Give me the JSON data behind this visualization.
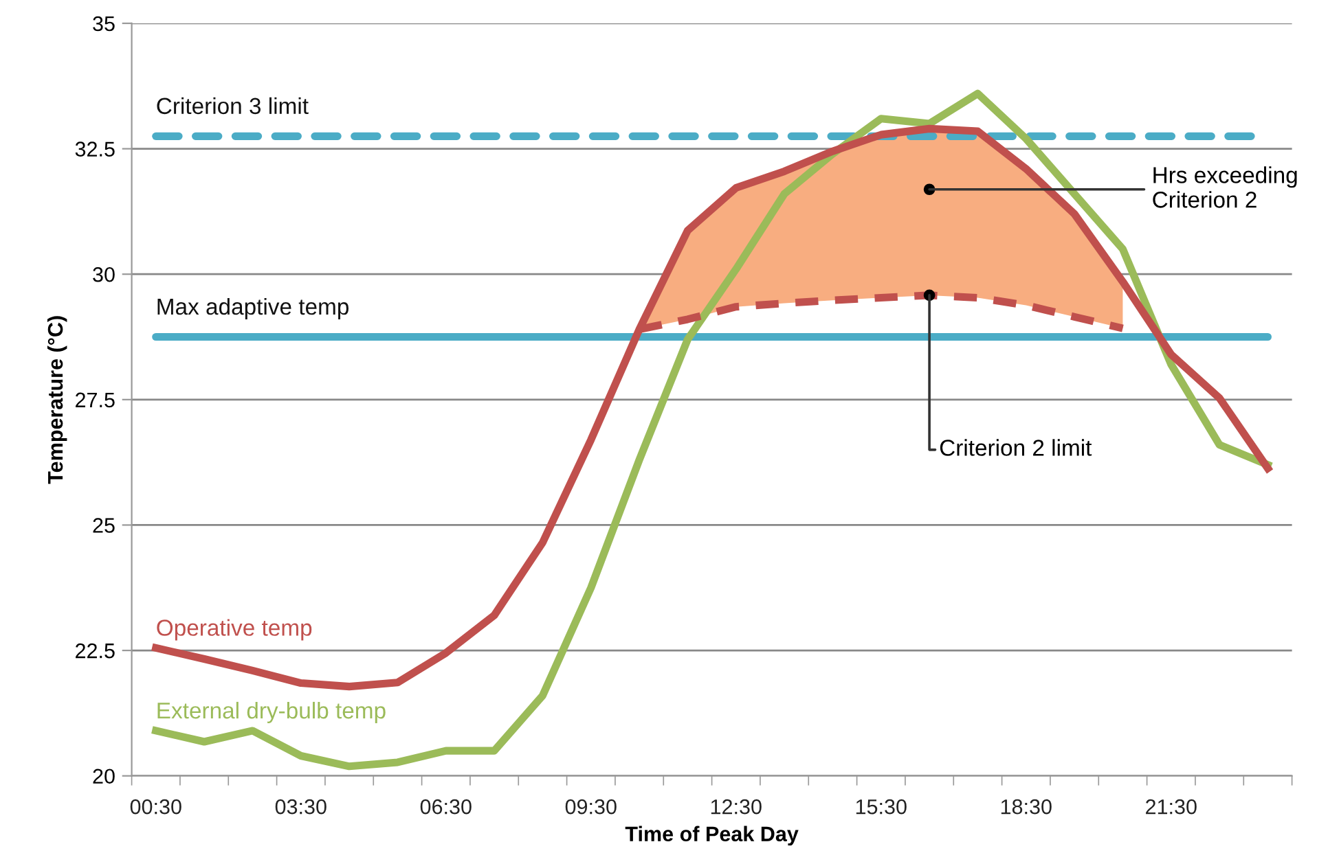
{
  "chart_data": {
    "type": "line",
    "xlabel": "Time of Peak Day",
    "ylabel": "Temperature (°C)",
    "categories": [
      "00:30",
      null,
      null,
      "03:30",
      null,
      null,
      "06:30",
      null,
      null,
      "09:30",
      null,
      null,
      "12:30",
      null,
      null,
      "15:30",
      null,
      null,
      "18:30",
      null,
      null,
      "21:30",
      null,
      null
    ],
    "series": [
      {
        "name": "External dry-bulb temp",
        "color": "#9bbb59",
        "values": [
          20.9,
          20.68,
          20.9,
          20.4,
          20.19,
          20.27,
          20.5,
          20.5,
          21.6,
          23.75,
          26.3,
          28.7,
          30.1,
          31.6,
          32.4,
          33.1,
          33.0,
          33.6,
          32.7,
          31.6,
          30.5,
          28.2,
          26.6,
          26.2
        ]
      },
      {
        "type": "area",
        "color": "#f8ad80",
        "values": [
          null,
          null,
          null,
          null,
          null,
          null,
          null,
          null,
          null,
          null,
          28.9,
          30.87,
          31.72,
          32.05,
          32.45,
          32.78,
          32.9,
          32.85,
          32.1,
          31.2,
          29.85,
          null,
          null,
          null
        ]
      },
      {
        "name": "Criterion 2 limit",
        "color": "#c0504d",
        "line_style": "dashed",
        "values": [
          null,
          null,
          null,
          null,
          null,
          null,
          null,
          null,
          null,
          null,
          28.9,
          29.1,
          29.35,
          29.42,
          29.48,
          29.53,
          29.58,
          29.53,
          29.38,
          29.15,
          28.92,
          null,
          null,
          null
        ]
      },
      {
        "name": "Operative temp",
        "color": "#c0504d",
        "values": [
          22.55,
          22.33,
          22.1,
          21.85,
          21.78,
          21.86,
          22.45,
          23.2,
          24.65,
          26.7,
          28.9,
          30.87,
          31.72,
          32.05,
          32.45,
          32.78,
          32.9,
          32.85,
          32.1,
          31.2,
          29.85,
          28.4,
          27.53,
          26.13
        ]
      }
    ],
    "ref_lines": [
      {
        "axis": "y",
        "value": 32.75,
        "label": "Criterion 3 limit",
        "color": "#4bacc6",
        "line_style": "dashed"
      },
      {
        "axis": "y",
        "value": 28.75,
        "label": "Max adaptive temp",
        "color": "#4bacc6",
        "line_style": "solid"
      }
    ],
    "annotations": [
      "Hrs exceeding Criterion 2"
    ],
    "ylim": [
      20,
      35
    ],
    "yticks": [
      20,
      22.5,
      25,
      27.5,
      30,
      32.5,
      35
    ],
    "grid": "y",
    "marker": "none",
    "legend": false
  }
}
